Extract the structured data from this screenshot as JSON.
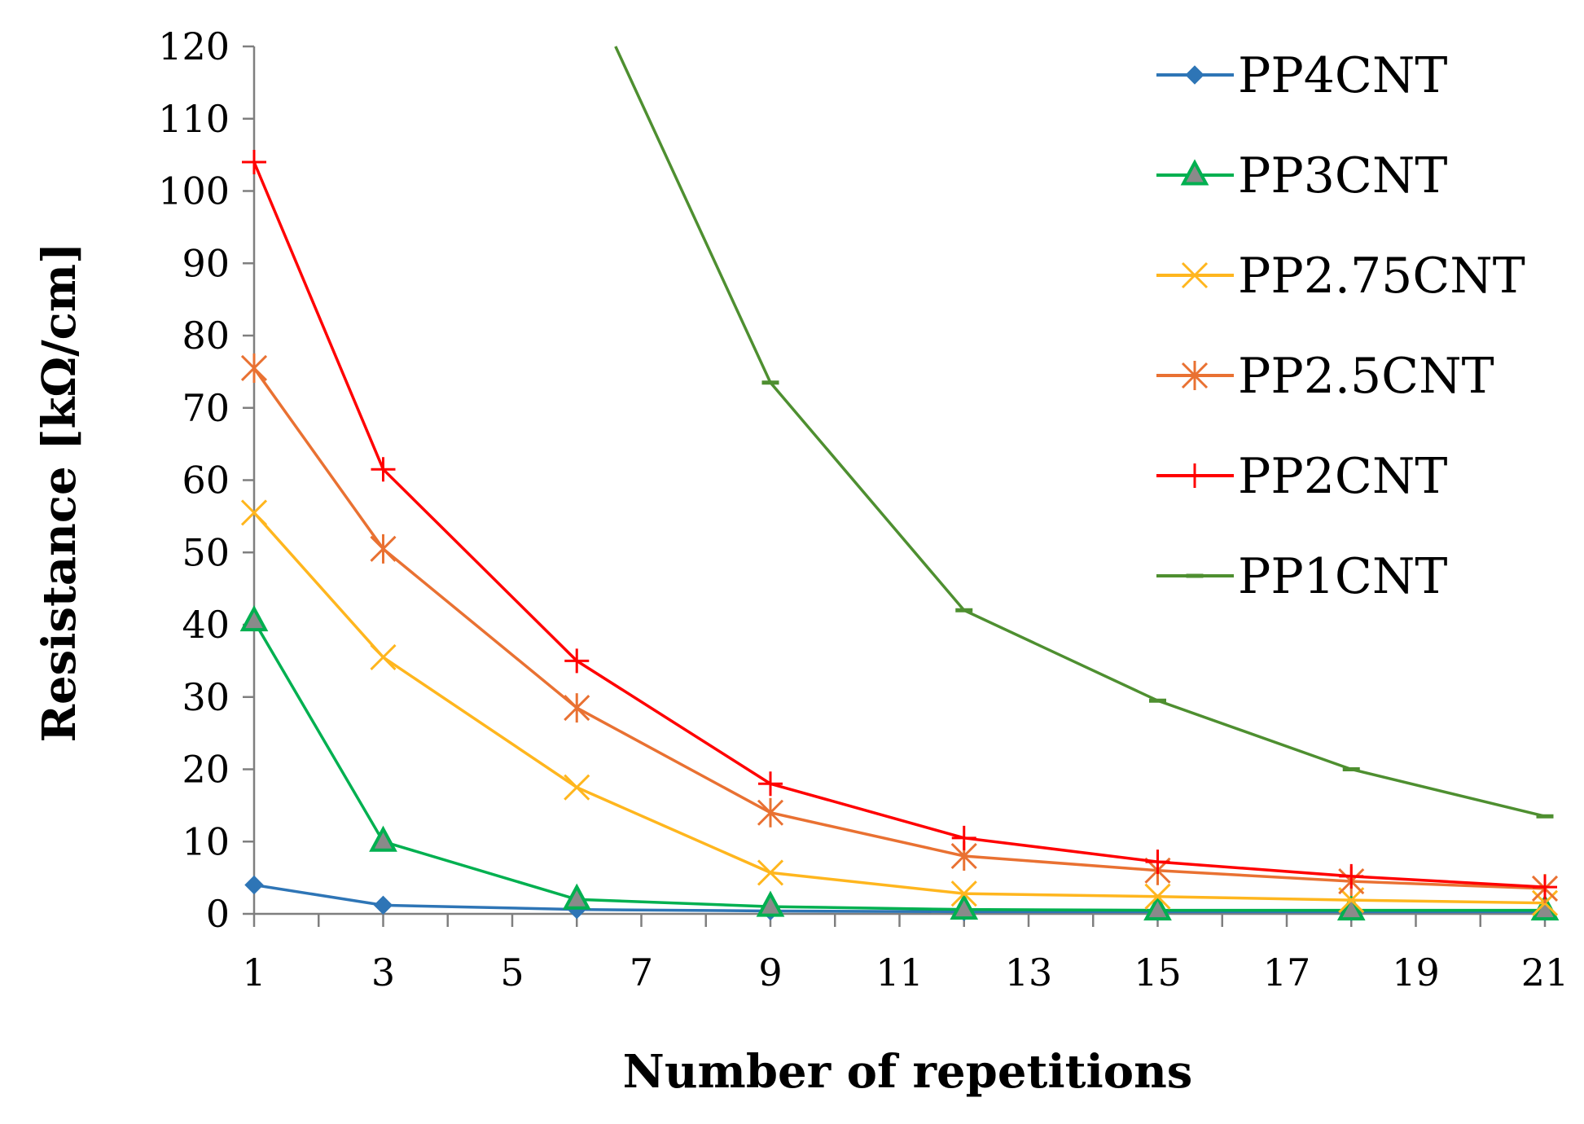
{
  "chart_data": {
    "type": "line",
    "title": "",
    "xlabel": "Number of repetitions",
    "ylabel": "Resistance [kΩ/cm]",
    "xlim": [
      1,
      21
    ],
    "ylim": [
      0,
      120
    ],
    "xticks": [
      1,
      3,
      5,
      7,
      9,
      11,
      13,
      15,
      17,
      19,
      21
    ],
    "yticks": [
      0,
      10,
      20,
      30,
      40,
      50,
      60,
      70,
      80,
      90,
      100,
      110,
      120
    ],
    "grid": false,
    "legend_position": "top-right",
    "x": [
      1,
      3,
      6,
      9,
      12,
      15,
      18,
      21
    ],
    "series": [
      {
        "name": "PP4CNT",
        "color": "#2E75B6",
        "marker": "diamond",
        "values": [
          4,
          1.2,
          0.6,
          0.4,
          0.3,
          0.3,
          0.3,
          0.3
        ]
      },
      {
        "name": "PP3CNT",
        "color": "#00B050",
        "marker": "triangle",
        "values": [
          40.5,
          10,
          2,
          1,
          0.6,
          0.5,
          0.5,
          0.5
        ]
      },
      {
        "name": "PP2.75CNT",
        "color": "#FFB61E",
        "marker": "x",
        "values": [
          55.5,
          35.5,
          17.5,
          5.7,
          2.8,
          2.4,
          1.9,
          1.5
        ]
      },
      {
        "name": "PP2.5CNT",
        "color": "#E97132",
        "marker": "star",
        "values": [
          75.5,
          50.5,
          28.5,
          14,
          8,
          6,
          4.5,
          3.5
        ]
      },
      {
        "name": "PP2CNT",
        "color": "#FF0000",
        "marker": "plus",
        "values": [
          104,
          61.5,
          35,
          18,
          10.5,
          7.2,
          5.2,
          3.7
        ]
      },
      {
        "name": "PP1CNT",
        "color": "#4E8F30",
        "marker": "dash",
        "values": [
          null,
          null,
          null,
          73.5,
          42,
          29.5,
          20,
          13.5
        ]
      }
    ],
    "annotations": [
      "PP1CNT line enters from above the 120 mark between x=6 and x=7"
    ],
    "pp1_entry": {
      "x": 6.6,
      "y": 120
    }
  }
}
